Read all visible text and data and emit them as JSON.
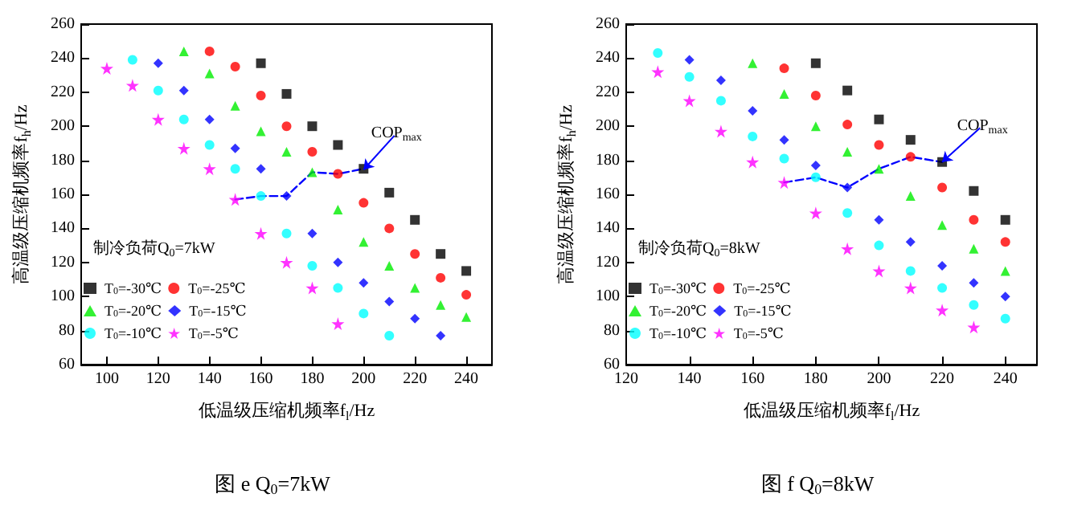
{
  "chart_data": [
    {
      "type": "scatter",
      "title": "图 e Q$_{0}$=7kW",
      "xlabel": "低温级压缩机频率f$_{l}$/Hz",
      "ylabel": "高温级压缩机频率f$_{h}$/Hz",
      "xlim": [
        90,
        250
      ],
      "xticks": [
        100,
        120,
        140,
        160,
        180,
        200,
        220,
        240
      ],
      "ylim": [
        60,
        260
      ],
      "yticks": [
        60,
        80,
        100,
        120,
        140,
        160,
        180,
        200,
        220,
        240,
        260
      ],
      "grid": false,
      "legend": "bottom left",
      "annotations": [
        "制冷负荷Q$_{0}$=7kW",
        {
          "text": "COP$_{max}$",
          "x": 200,
          "y": 174.5
        }
      ],
      "series": [
        {
          "name": "T$_{0}$=-30℃",
          "color": "#000000",
          "marker": "square",
          "x": [
            160,
            170,
            180,
            190,
            200,
            210,
            220,
            230,
            240
          ],
          "values": [
            237,
            219,
            200,
            189,
            175,
            161,
            145,
            125,
            115
          ]
        },
        {
          "name": "T$_{0}$=-25℃",
          "color": "#ff0000",
          "marker": "circle",
          "x": [
            140,
            150,
            160,
            170,
            180,
            190,
            200,
            210,
            220,
            230,
            240
          ],
          "values": [
            244,
            235,
            218,
            200,
            185,
            172,
            155,
            140,
            125,
            111,
            101
          ]
        },
        {
          "name": "T$_{0}$=-20℃",
          "color": "#00ee00",
          "marker": "triangle",
          "x": [
            130,
            140,
            150,
            160,
            170,
            180,
            190,
            200,
            210,
            220,
            230,
            240
          ],
          "values": [
            244,
            231,
            212,
            197,
            185,
            173,
            151,
            132,
            118,
            105,
            95,
            88
          ]
        },
        {
          "name": "T$_{0}$=-15℃",
          "color": "#0000ff",
          "marker": "diamond",
          "x": [
            120,
            130,
            140,
            150,
            160,
            170,
            180,
            190,
            200,
            210,
            220,
            230
          ],
          "values": [
            237,
            221,
            204,
            187,
            175,
            159,
            137,
            120,
            108,
            97,
            87,
            77
          ]
        },
        {
          "name": "T$_{0}$=-10℃",
          "color": "#00ffff",
          "marker": "circle",
          "x": [
            110,
            120,
            130,
            140,
            150,
            160,
            170,
            180,
            190,
            200,
            210
          ],
          "values": [
            239,
            221,
            204,
            189,
            175,
            159,
            137,
            118,
            105,
            90,
            77
          ]
        },
        {
          "name": "T$_{0}$=-5℃",
          "color": "#ff00ff",
          "marker": "star",
          "x": [
            100,
            110,
            120,
            130,
            140,
            150,
            160,
            170,
            180,
            190
          ],
          "values": [
            234,
            224,
            204,
            187,
            175,
            157,
            137,
            120,
            105,
            84
          ]
        },
        {
          "type": "line",
          "color": "#0000ff",
          "marker": "none",
          "line_style": "dashed",
          "x": [
            150,
            160,
            170,
            180,
            190,
            200
          ],
          "values": [
            157,
            159,
            159,
            173,
            172,
            175
          ]
        }
      ]
    },
    {
      "type": "scatter",
      "title": "图 f Q$_{0}$=8kW",
      "xlabel": "低温级压缩机频率f$_{l}$/Hz",
      "ylabel": "高温级压缩机频率f$_{h}$/Hz",
      "xlim": [
        120,
        250
      ],
      "xticks": [
        120,
        140,
        160,
        180,
        200,
        220,
        240
      ],
      "ylim": [
        60,
        260
      ],
      "yticks": [
        60,
        80,
        100,
        120,
        140,
        160,
        180,
        200,
        220,
        240,
        260
      ],
      "grid": false,
      "legend": "bottom left",
      "annotations": [
        "制冷负荷Q$_{0}$=8kW",
        {
          "text": "COP$_{max}$",
          "x": 220,
          "y": 179
        }
      ],
      "series": [
        {
          "name": "T$_{0}$=-30℃",
          "color": "#000000",
          "marker": "square",
          "x": [
            180,
            190,
            200,
            210,
            220,
            230,
            240
          ],
          "values": [
            237,
            221,
            204,
            192,
            179,
            162,
            145
          ]
        },
        {
          "name": "T$_{0}$=-25℃",
          "color": "#ff0000",
          "marker": "circle",
          "x": [
            170,
            180,
            190,
            200,
            210,
            220,
            230,
            240
          ],
          "values": [
            234,
            218,
            201,
            189,
            182,
            164,
            145,
            132
          ]
        },
        {
          "name": "T$_{0}$=-20℃",
          "color": "#00ee00",
          "marker": "triangle",
          "x": [
            160,
            170,
            180,
            190,
            200,
            210,
            220,
            230,
            240
          ],
          "values": [
            237,
            219,
            200,
            185,
            175,
            159,
            142,
            128,
            115
          ]
        },
        {
          "name": "T$_{0}$=-15℃",
          "color": "#0000ff",
          "marker": "diamond",
          "x": [
            140,
            150,
            160,
            170,
            180,
            190,
            200,
            210,
            220,
            230,
            240
          ],
          "values": [
            239,
            227,
            209,
            192,
            177,
            164,
            145,
            132,
            118,
            108,
            100
          ]
        },
        {
          "name": "T$_{0}$=-10℃",
          "color": "#00ffff",
          "marker": "circle",
          "x": [
            130,
            140,
            150,
            160,
            170,
            180,
            190,
            200,
            210,
            220,
            230,
            240
          ],
          "values": [
            243,
            229,
            215,
            194,
            181,
            170,
            149,
            130,
            115,
            105,
            95,
            87
          ]
        },
        {
          "name": "T$_{0}$=-5℃",
          "color": "#ff00ff",
          "marker": "star",
          "x": [
            130,
            140,
            150,
            160,
            170,
            180,
            190,
            200,
            210,
            220,
            230
          ],
          "values": [
            232,
            215,
            197,
            179,
            167,
            149,
            128,
            115,
            105,
            92,
            82
          ]
        },
        {
          "type": "line",
          "color": "#0000ff",
          "marker": "none",
          "line_style": "dashed",
          "x": [
            170,
            180,
            190,
            200,
            210,
            220
          ],
          "values": [
            167,
            170,
            164,
            175,
            182,
            179
          ]
        }
      ]
    }
  ]
}
